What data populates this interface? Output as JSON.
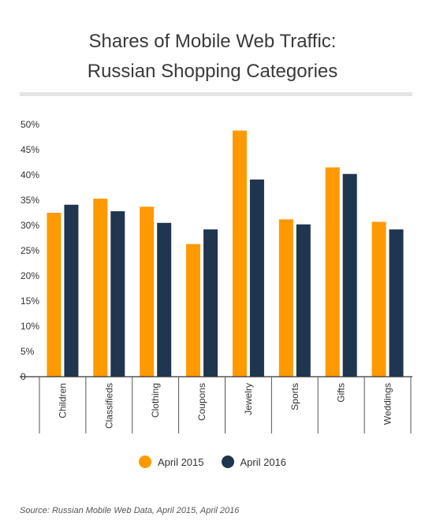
{
  "chart_data": {
    "type": "bar",
    "title_line1": "Shares of Mobile Web Traffic:",
    "title_line2": "Russian Shopping Categories",
    "categories": [
      "Children",
      "Classifieds",
      "Clothing",
      "Coupons",
      "Jewelry",
      "Sports",
      "Gifts",
      "Weddings"
    ],
    "series": [
      {
        "name": "April 2015",
        "color": "#FF9900",
        "values": [
          32.5,
          35.3,
          33.7,
          26.3,
          48.8,
          31.2,
          41.5,
          30.7
        ]
      },
      {
        "name": "April 2016",
        "color": "#1F3550",
        "values": [
          34.1,
          32.8,
          30.5,
          29.2,
          39.1,
          30.2,
          40.2,
          29.2
        ]
      }
    ],
    "ylim": [
      0,
      50
    ],
    "yticks": [
      {
        "value": 0,
        "label": "0"
      },
      {
        "value": 5,
        "label": "5%"
      },
      {
        "value": 10,
        "label": "10%"
      },
      {
        "value": 15,
        "label": "15%"
      },
      {
        "value": 20,
        "label": "20%"
      },
      {
        "value": 25,
        "label": "25%"
      },
      {
        "value": 30,
        "label": "30%"
      },
      {
        "value": 35,
        "label": "35%"
      },
      {
        "value": 40,
        "label": "40%"
      },
      {
        "value": 45,
        "label": "45%"
      },
      {
        "value": 50,
        "label": "50%"
      }
    ],
    "legend_position": "bottom",
    "grid": false
  },
  "source": "Source: Russian Mobile Web Data, April 2015, April 2016"
}
